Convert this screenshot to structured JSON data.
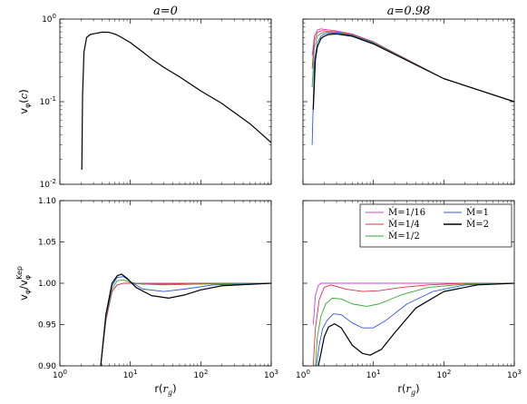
{
  "chart_data": [
    {
      "panel": "top-left",
      "type": "line",
      "title": "a=0",
      "ylabel": "v_φ(c)",
      "yscale": "log",
      "xscale": "log",
      "xlim": [
        1,
        1000
      ],
      "ylim": [
        0.01,
        1
      ],
      "ytick_labels": [
        "10^-2",
        "10^-1",
        "10^0"
      ],
      "series": [
        {
          "color": "#000000",
          "x": [
            2.05,
            2.1,
            2.2,
            2.4,
            2.7,
            3.2,
            4,
            5,
            6,
            7,
            8,
            10,
            15,
            20,
            30,
            50,
            100,
            200,
            500,
            1000
          ],
          "y": [
            0.015,
            0.12,
            0.4,
            0.6,
            0.65,
            0.67,
            0.695,
            0.69,
            0.66,
            0.62,
            0.58,
            0.52,
            0.4,
            0.33,
            0.26,
            0.2,
            0.135,
            0.095,
            0.054,
            0.032
          ]
        }
      ]
    },
    {
      "panel": "top-right",
      "type": "line",
      "title": "a=0.98",
      "yscale": "log",
      "xscale": "log",
      "xlim": [
        1,
        1000
      ],
      "ylim": [
        0.01,
        1
      ],
      "series": [
        {
          "color": "#cc44cc",
          "x": [
            1.35,
            1.45,
            1.6,
            1.8,
            2,
            2.3,
            3,
            5,
            10,
            100,
            1000
          ],
          "y": [
            0.36,
            0.62,
            0.74,
            0.76,
            0.75,
            0.74,
            0.72,
            0.66,
            0.53,
            0.19,
            0.1
          ]
        },
        {
          "color": "#dd3344",
          "x": [
            1.35,
            1.45,
            1.6,
            1.8,
            2,
            2.3,
            3,
            5,
            10,
            100,
            1000
          ],
          "y": [
            0.25,
            0.55,
            0.69,
            0.72,
            0.72,
            0.71,
            0.7,
            0.65,
            0.53,
            0.19,
            0.1
          ]
        },
        {
          "color": "#33aa33",
          "x": [
            1.35,
            1.45,
            1.6,
            1.8,
            2,
            2.3,
            3,
            5,
            10,
            100,
            1000
          ],
          "y": [
            0.15,
            0.45,
            0.62,
            0.67,
            0.69,
            0.69,
            0.69,
            0.64,
            0.52,
            0.19,
            0.1
          ]
        },
        {
          "color": "#3355dd",
          "x": [
            1.35,
            1.45,
            1.6,
            1.8,
            2,
            2.3,
            3,
            5,
            10,
            100,
            1000
          ],
          "y": [
            0.03,
            0.3,
            0.52,
            0.62,
            0.66,
            0.67,
            0.68,
            0.63,
            0.51,
            0.19,
            0.1
          ]
        },
        {
          "color": "#000000",
          "x": [
            1.4,
            1.5,
            1.6,
            1.8,
            2,
            2.3,
            3,
            5,
            10,
            100,
            1000
          ],
          "y": [
            0.08,
            0.32,
            0.46,
            0.58,
            0.62,
            0.65,
            0.66,
            0.62,
            0.5,
            0.19,
            0.1
          ]
        }
      ]
    },
    {
      "panel": "bottom-left",
      "type": "line",
      "ylabel": "v_φ/v_φ^Kep",
      "xlabel": "r(r_g)",
      "xscale": "log",
      "xlim": [
        1,
        1000
      ],
      "ylim": [
        0.9,
        1.1
      ],
      "ytick_labels": [
        "0.90",
        "0.95",
        "1.00",
        "1.05",
        "1.10"
      ],
      "xtick_labels": [
        "10^0",
        "10^1",
        "10^2",
        "10^3"
      ],
      "series": [
        {
          "color": "#cc44cc",
          "x": [
            3.8,
            4.5,
            5.5,
            6.5,
            8,
            10,
            15,
            30,
            100,
            1000
          ],
          "y": [
            0.9,
            0.955,
            0.99,
            0.998,
            1.0,
            1.0,
            1.0,
            1.0,
            1.0,
            1.0
          ]
        },
        {
          "color": "#dd3344",
          "x": [
            3.8,
            4.5,
            5.5,
            6.5,
            8,
            10,
            15,
            30,
            100,
            1000
          ],
          "y": [
            0.9,
            0.955,
            0.99,
            0.998,
            1.0,
            1.0,
            0.999,
            0.999,
            1.0,
            1.0
          ]
        },
        {
          "color": "#33aa33",
          "x": [
            3.8,
            4.5,
            5.5,
            6.5,
            8,
            10,
            15,
            30,
            100,
            1000
          ],
          "y": [
            0.9,
            0.958,
            0.993,
            1.003,
            1.004,
            1.001,
            0.999,
            0.998,
            0.999,
            1.0
          ]
        },
        {
          "color": "#3355dd",
          "x": [
            3.8,
            4.5,
            5.5,
            6.5,
            8,
            10,
            15,
            30,
            60,
            150,
            1000
          ],
          "y": [
            0.9,
            0.96,
            0.997,
            1.007,
            1.008,
            1.002,
            0.993,
            0.99,
            0.993,
            0.998,
            1.0
          ]
        },
        {
          "color": "#000000",
          "x": [
            3.8,
            4.5,
            5.5,
            6.5,
            7.5,
            9,
            12,
            20,
            35,
            60,
            100,
            200,
            1000
          ],
          "y": [
            0.9,
            0.962,
            1.0,
            1.009,
            1.011,
            1.006,
            0.995,
            0.985,
            0.982,
            0.986,
            0.992,
            0.997,
            1.0
          ]
        }
      ]
    },
    {
      "panel": "bottom-right",
      "type": "line",
      "xlabel": "r(r_g)",
      "xscale": "log",
      "xlim": [
        1,
        1000
      ],
      "ylim": [
        0.9,
        1.1
      ],
      "xtick_labels": [
        "10^0",
        "10^1",
        "10^2",
        "10^3"
      ],
      "legend_position": "top-right",
      "legend": [
        {
          "label": "Ṁ=1/16",
          "color": "#cc44cc"
        },
        {
          "label": "Ṁ=1/4",
          "color": "#dd3344"
        },
        {
          "label": "Ṁ=1/2",
          "color": "#33aa33"
        },
        {
          "label": "Ṁ=1",
          "color": "#3355dd"
        },
        {
          "label": "Ṁ=2",
          "color": "#000000"
        }
      ],
      "series": [
        {
          "color": "#cc44cc",
          "x": [
            1.4,
            1.5,
            1.65,
            1.8,
            2.0,
            2.5,
            4,
            10,
            100,
            1000
          ],
          "y": [
            0.95,
            0.985,
            0.997,
            1.0,
            1.0,
            1.0,
            1.0,
            1.0,
            1.0,
            1.0
          ]
        },
        {
          "color": "#dd3344",
          "x": [
            1.4,
            1.5,
            1.7,
            2.0,
            2.5,
            4,
            7,
            12,
            25,
            60,
            200,
            1000
          ],
          "y": [
            0.9,
            0.945,
            0.98,
            0.995,
            0.998,
            0.993,
            0.99,
            0.991,
            0.995,
            0.998,
            1.0,
            1.0
          ]
        },
        {
          "color": "#33aa33",
          "x": [
            1.5,
            1.6,
            1.8,
            2.1,
            2.6,
            3.5,
            5,
            8,
            12,
            25,
            60,
            200,
            1000
          ],
          "y": [
            0.9,
            0.935,
            0.96,
            0.975,
            0.982,
            0.981,
            0.975,
            0.972,
            0.975,
            0.986,
            0.995,
            0.999,
            1.0
          ]
        },
        {
          "color": "#3355dd",
          "x": [
            1.55,
            1.7,
            1.9,
            2.2,
            2.7,
            3.5,
            5,
            7,
            10,
            15,
            30,
            70,
            200,
            1000
          ],
          "y": [
            0.9,
            0.925,
            0.945,
            0.955,
            0.963,
            0.962,
            0.952,
            0.946,
            0.946,
            0.955,
            0.975,
            0.99,
            0.998,
            1.0
          ]
        },
        {
          "color": "#000000",
          "x": [
            1.65,
            1.8,
            2.0,
            2.3,
            2.8,
            3.5,
            5,
            7,
            9,
            13,
            20,
            40,
            100,
            300,
            1000
          ],
          "y": [
            0.9,
            0.915,
            0.935,
            0.947,
            0.951,
            0.946,
            0.925,
            0.915,
            0.913,
            0.92,
            0.94,
            0.97,
            0.99,
            0.998,
            1.0
          ]
        }
      ]
    }
  ]
}
